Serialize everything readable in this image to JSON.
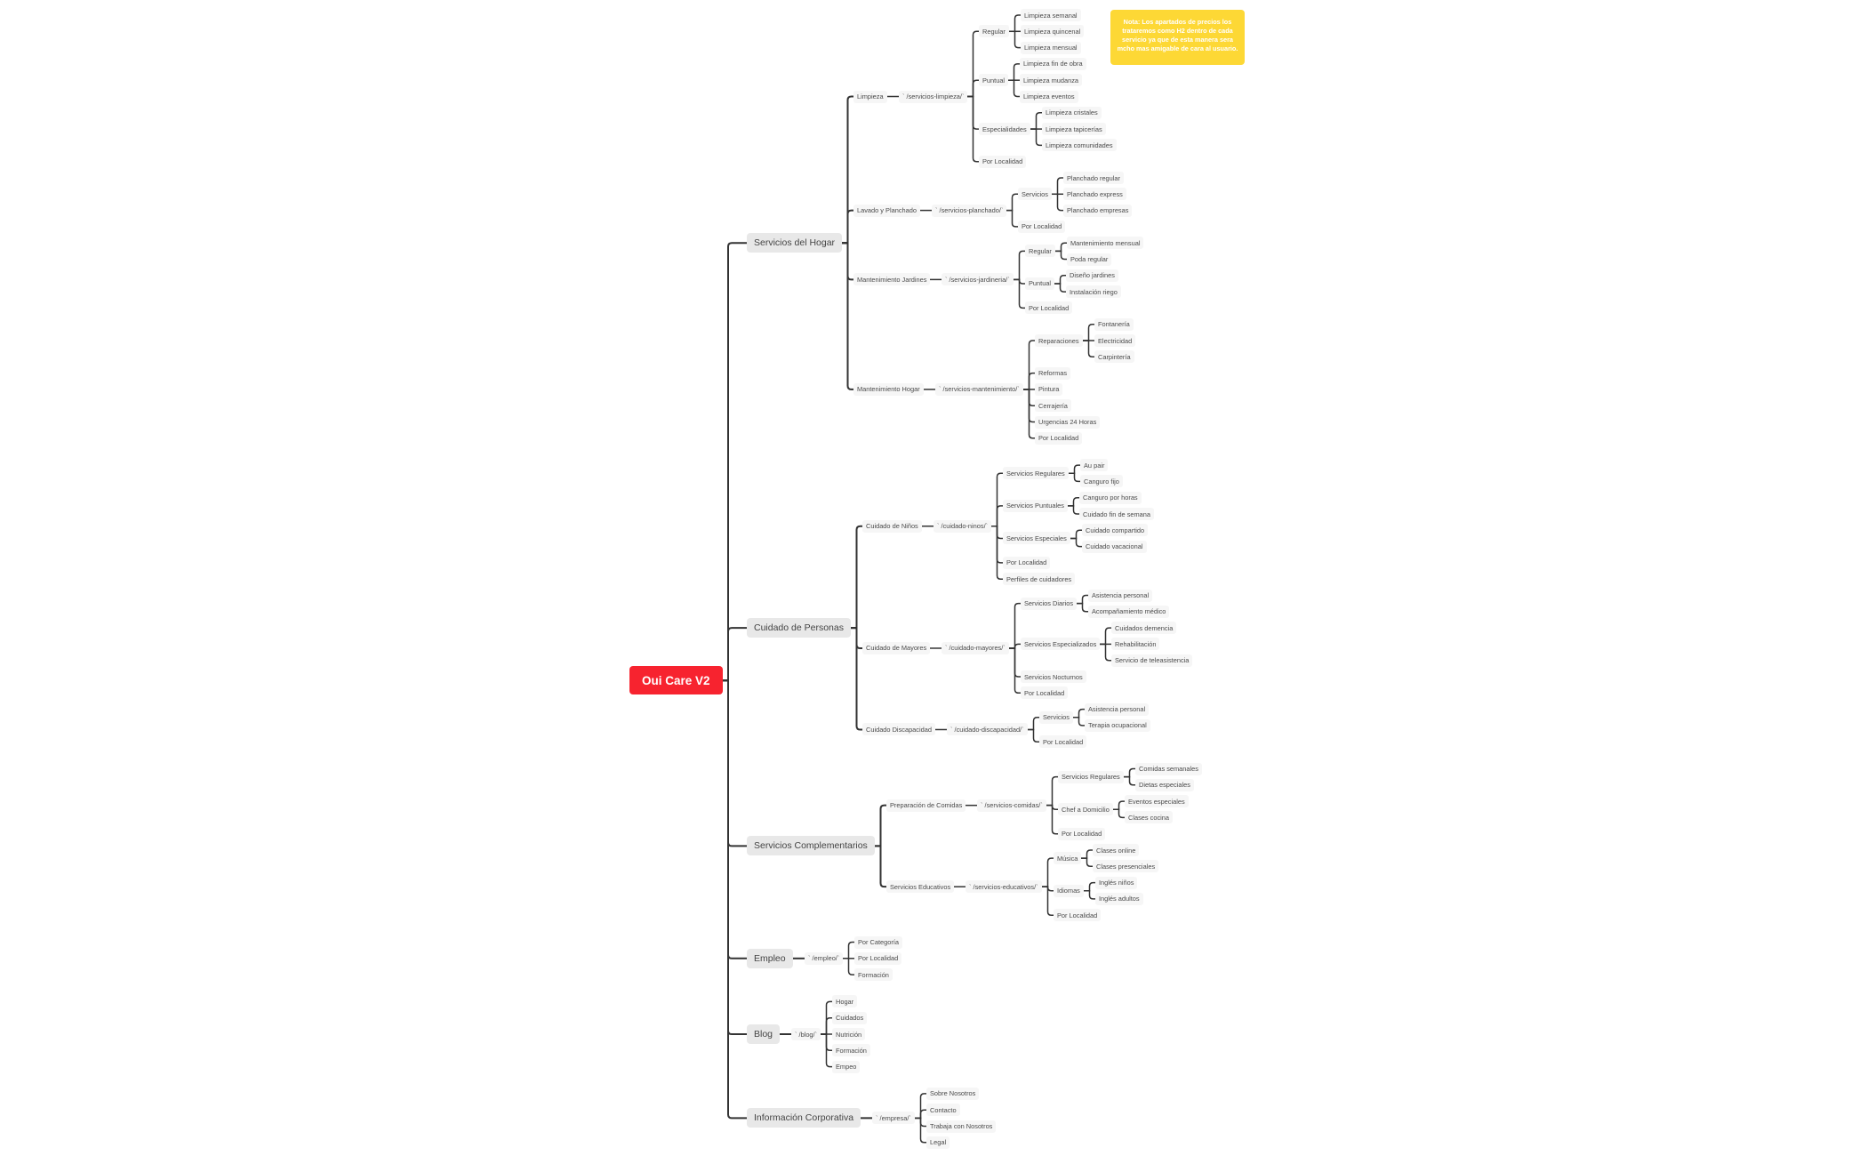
{
  "colors": {
    "root": "#f7232f",
    "note": "#fdd835",
    "connector": "#333333",
    "branch_bg": "#e8e8e8",
    "leaf_bg": "#f6f6f6"
  },
  "note": {
    "text": "Nota: Los apartados de precios los trataremos como H2 dentro de cada servicio ya que de esta manera sera mcho mas amigable de cara al usuario."
  },
  "tree": {
    "label": "Oui Care V2",
    "children": [
      {
        "label": "Servicios del Hogar",
        "children": [
          {
            "label": "Limpieza",
            "children": [
              {
                "label": "` /servicios-limpieza/`",
                "children": [
                  {
                    "label": "Regular",
                    "children": [
                      {
                        "label": "Limpieza semanal"
                      },
                      {
                        "label": "Limpieza quincenal"
                      },
                      {
                        "label": "Limpieza mensual"
                      }
                    ]
                  },
                  {
                    "label": "Puntual",
                    "children": [
                      {
                        "label": "Limpieza fin de obra"
                      },
                      {
                        "label": "Limpieza mudanza"
                      },
                      {
                        "label": "Limpieza eventos"
                      }
                    ]
                  },
                  {
                    "label": "Especialidades",
                    "children": [
                      {
                        "label": "Limpieza cristales"
                      },
                      {
                        "label": "Limpieza tapicerías"
                      },
                      {
                        "label": "Limpieza comunidades"
                      }
                    ]
                  },
                  {
                    "label": "Por Localidad"
                  }
                ]
              }
            ]
          },
          {
            "label": "Lavado y Planchado",
            "children": [
              {
                "label": "` /servicios-planchado/`",
                "children": [
                  {
                    "label": "Servicios",
                    "children": [
                      {
                        "label": "Planchado regular"
                      },
                      {
                        "label": "Planchado express"
                      },
                      {
                        "label": "Planchado empresas"
                      }
                    ]
                  },
                  {
                    "label": "Por Localidad"
                  }
                ]
              }
            ]
          },
          {
            "label": "Mantenimiento Jardines",
            "children": [
              {
                "label": "` /servicios-jardineria/`",
                "children": [
                  {
                    "label": "Regular",
                    "children": [
                      {
                        "label": "Mantenimiento mensual"
                      },
                      {
                        "label": "Poda regular"
                      }
                    ]
                  },
                  {
                    "label": "Puntual",
                    "children": [
                      {
                        "label": "Diseño jardines"
                      },
                      {
                        "label": "Instalación riego"
                      }
                    ]
                  },
                  {
                    "label": "Por Localidad"
                  }
                ]
              }
            ]
          },
          {
            "label": "Mantenimiento Hogar",
            "children": [
              {
                "label": "` /servicios-mantenimiento/`",
                "children": [
                  {
                    "label": "Reparaciones",
                    "children": [
                      {
                        "label": "Fontanería"
                      },
                      {
                        "label": "Electricidad"
                      },
                      {
                        "label": "Carpintería"
                      }
                    ]
                  },
                  {
                    "label": "Reformas"
                  },
                  {
                    "label": "Pintura"
                  },
                  {
                    "label": "Cerrajería"
                  },
                  {
                    "label": "Urgencias 24 Horas"
                  },
                  {
                    "label": "Por Localidad"
                  }
                ]
              }
            ]
          }
        ]
      },
      {
        "label": "Cuidado de Personas",
        "children": [
          {
            "label": "Cuidado de Niños",
            "children": [
              {
                "label": "` /cuidado-ninos/`",
                "children": [
                  {
                    "label": "Servicios Regulares",
                    "children": [
                      {
                        "label": "Au pair"
                      },
                      {
                        "label": "Canguro fijo"
                      }
                    ]
                  },
                  {
                    "label": "Servicios Puntuales",
                    "children": [
                      {
                        "label": "Canguro por horas"
                      },
                      {
                        "label": "Cuidado fin de semana"
                      }
                    ]
                  },
                  {
                    "label": "Servicios Especiales",
                    "children": [
                      {
                        "label": "Cuidado compartido"
                      },
                      {
                        "label": "Cuidado vacacional"
                      }
                    ]
                  },
                  {
                    "label": "Por Localidad"
                  },
                  {
                    "label": "Perfiles de cuidadores"
                  }
                ]
              }
            ]
          },
          {
            "label": "Cuidado de Mayores",
            "children": [
              {
                "label": "` /cuidado-mayores/`",
                "children": [
                  {
                    "label": "Servicios Diarios",
                    "children": [
                      {
                        "label": "Asistencia personal"
                      },
                      {
                        "label": "Acompañamiento médico"
                      }
                    ]
                  },
                  {
                    "label": "Servicios Especializados",
                    "children": [
                      {
                        "label": "Cuidados demencia"
                      },
                      {
                        "label": "Rehabilitación"
                      },
                      {
                        "label": "Servicio de teleasistencia"
                      }
                    ]
                  },
                  {
                    "label": "Servicios Nocturnos"
                  },
                  {
                    "label": "Por Localidad"
                  }
                ]
              }
            ]
          },
          {
            "label": "Cuidado Discapacidad",
            "children": [
              {
                "label": "` /cuidado-discapacidad/`",
                "children": [
                  {
                    "label": "Servicios",
                    "children": [
                      {
                        "label": "Asistencia personal"
                      },
                      {
                        "label": "Terapia ocupacional"
                      }
                    ]
                  },
                  {
                    "label": "Por Localidad"
                  }
                ]
              }
            ]
          }
        ]
      },
      {
        "label": "Servicios Complementarios",
        "children": [
          {
            "label": "Preparación de Comidas",
            "children": [
              {
                "label": "` /servicios-comidas/`",
                "children": [
                  {
                    "label": "Servicios Regulares",
                    "children": [
                      {
                        "label": "Comidas semanales"
                      },
                      {
                        "label": "Dietas especiales"
                      }
                    ]
                  },
                  {
                    "label": "Chef a Domicilio",
                    "children": [
                      {
                        "label": "Eventos especiales"
                      },
                      {
                        "label": "Clases cocina"
                      }
                    ]
                  },
                  {
                    "label": "Por Localidad"
                  }
                ]
              }
            ]
          },
          {
            "label": "Servicios Educativos",
            "children": [
              {
                "label": "` /servicios-educativos/`",
                "children": [
                  {
                    "label": "Música",
                    "children": [
                      {
                        "label": "Clases online"
                      },
                      {
                        "label": "Clases presenciales"
                      }
                    ]
                  },
                  {
                    "label": "Idiomas",
                    "children": [
                      {
                        "label": "Inglés niños"
                      },
                      {
                        "label": "Inglés adultos"
                      }
                    ]
                  },
                  {
                    "label": "Por Localidad"
                  }
                ]
              }
            ]
          }
        ]
      },
      {
        "label": "Empleo",
        "children": [
          {
            "label": "` /empleo/`",
            "children": [
              {
                "label": "Por Categoría"
              },
              {
                "label": "Por Localidad"
              },
              {
                "label": "Formación"
              }
            ]
          }
        ]
      },
      {
        "label": "Blog",
        "children": [
          {
            "label": "` /blog/`",
            "children": [
              {
                "label": "Hogar"
              },
              {
                "label": "Cuidados"
              },
              {
                "label": "Nutrición"
              },
              {
                "label": "Formación"
              },
              {
                "label": "Empeo"
              }
            ]
          }
        ]
      },
      {
        "label": "Información Corporativa",
        "children": [
          {
            "label": "` /empresa/`",
            "children": [
              {
                "label": "Sobre Nosotros"
              },
              {
                "label": "Contacto"
              },
              {
                "label": "Trabaja con Nosotros"
              },
              {
                "label": "Legal"
              }
            ]
          }
        ]
      }
    ]
  }
}
